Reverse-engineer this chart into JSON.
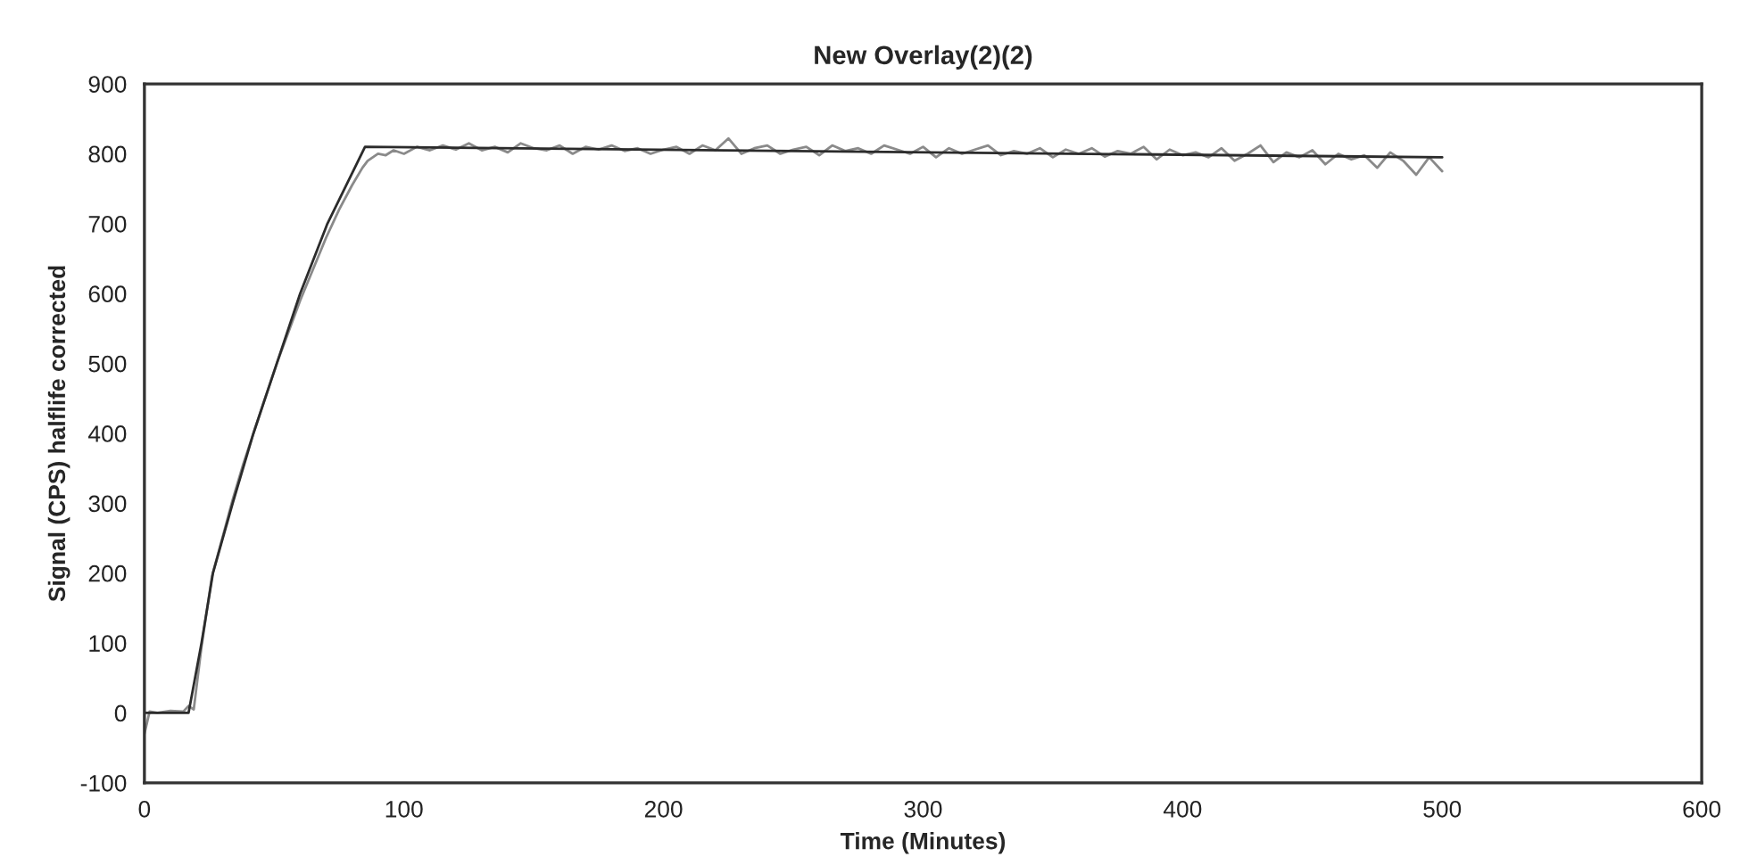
{
  "chart_data": {
    "type": "line",
    "title": "New Overlay(2)(2)",
    "xlabel": "Time (Minutes)",
    "ylabel": "Signal (CPS) halflife corrected",
    "xlim": [
      0,
      600
    ],
    "xticks": [
      0,
      100,
      200,
      300,
      400,
      500,
      600
    ],
    "ylim": [
      -100,
      900
    ],
    "yticks": [
      -100,
      0,
      100,
      200,
      300,
      400,
      500,
      600,
      700,
      800,
      900
    ],
    "grid": false,
    "marker": "none",
    "line_style": "solid",
    "series": [
      {
        "color": "#8a8a8a",
        "x": [
          0,
          2,
          5,
          10,
          15,
          17,
          19,
          22,
          26,
          30,
          34,
          38,
          42,
          46,
          51,
          55,
          60,
          65,
          70,
          75,
          80,
          84,
          86,
          88,
          90,
          93,
          96,
          100,
          105,
          110,
          115,
          120,
          125,
          130,
          135,
          140,
          145,
          150,
          155,
          160,
          165,
          170,
          175,
          180,
          185,
          190,
          195,
          200,
          205,
          210,
          215,
          220,
          225,
          230,
          235,
          240,
          245,
          250,
          255,
          260,
          265,
          270,
          275,
          280,
          285,
          290,
          295,
          300,
          305,
          310,
          315,
          320,
          325,
          330,
          335,
          340,
          345,
          350,
          355,
          360,
          365,
          370,
          375,
          380,
          385,
          390,
          395,
          400,
          405,
          410,
          415,
          420,
          425,
          430,
          435,
          440,
          445,
          450,
          455,
          460,
          465,
          470,
          475,
          480,
          485,
          490,
          495,
          500
        ],
        "values": [
          -30,
          2,
          0,
          3,
          2,
          10,
          5,
          95,
          195,
          250,
          305,
          355,
          400,
          445,
          500,
          540,
          590,
          635,
          680,
          720,
          755,
          780,
          790,
          795,
          800,
          798,
          805,
          800,
          810,
          805,
          812,
          806,
          815,
          805,
          810,
          802,
          815,
          808,
          805,
          812,
          800,
          810,
          806,
          812,
          804,
          808,
          800,
          806,
          810,
          800,
          812,
          805,
          822,
          800,
          808,
          812,
          800,
          806,
          810,
          798,
          812,
          804,
          808,
          800,
          812,
          806,
          800,
          810,
          795,
          808,
          800,
          806,
          812,
          798,
          804,
          800,
          808,
          795,
          806,
          800,
          808,
          796,
          804,
          800,
          810,
          792,
          806,
          798,
          802,
          795,
          808,
          790,
          800,
          812,
          788,
          802,
          795,
          805,
          785,
          800,
          792,
          798,
          780,
          802,
          790,
          770,
          795,
          775
        ]
      },
      {
        "color": "#2b2b2b",
        "x": [
          0,
          17,
          22,
          26.4,
          34,
          42,
          51,
          60,
          70.5,
          85,
          500
        ],
        "values": [
          0,
          0,
          100,
          200,
          300,
          400,
          500,
          600,
          700,
          810,
          795
        ]
      }
    ]
  }
}
